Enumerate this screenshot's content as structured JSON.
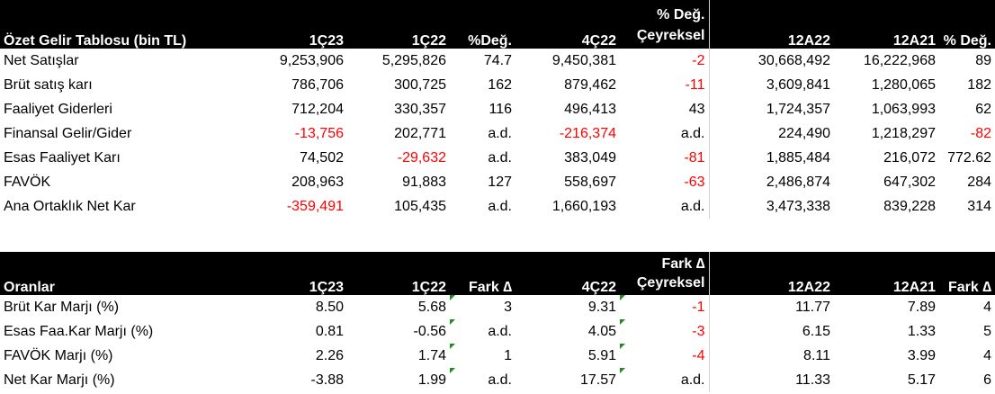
{
  "income": {
    "headers": {
      "title": "Özet Gelir Tablosu (bin TL)",
      "c1": "1Ç23",
      "c2": "1Ç22",
      "c3": "%Değ.",
      "c4": "4Ç22",
      "c5_top": "% Değ.",
      "c5": "Çeyreksel",
      "c6": "12A22",
      "c7": "12A21",
      "c8": "% Değ."
    },
    "rows": [
      {
        "label": "Net Satışlar",
        "v": [
          "9,253,906",
          "5,295,826",
          "74.7",
          "9,450,381",
          "-2",
          "30,668,492",
          "16,222,968",
          "89"
        ]
      },
      {
        "label": "Brüt satış karı",
        "v": [
          "786,706",
          "300,725",
          "162",
          "879,462",
          "-11",
          "3,609,841",
          "1,280,065",
          "182"
        ]
      },
      {
        "label": "Faaliyet Giderleri",
        "v": [
          "712,204",
          "330,357",
          "116",
          "496,413",
          "43",
          "1,724,357",
          "1,063,993",
          "62"
        ]
      },
      {
        "label": "Finansal Gelir/Gider",
        "v": [
          "-13,756",
          "202,771",
          "a.d.",
          "-216,374",
          "a.d.",
          "224,490",
          "1,218,297",
          "-82"
        ]
      },
      {
        "label": "Esas Faaliyet Karı",
        "v": [
          "74,502",
          "-29,632",
          "a.d.",
          "383,049",
          "-81",
          "1,885,484",
          "216,072",
          "772.62"
        ]
      },
      {
        "label": "FAVÖK",
        "v": [
          "208,963",
          "91,883",
          "127",
          "558,697",
          "-63",
          "2,486,874",
          "647,302",
          "284"
        ]
      },
      {
        "label": "Ana Ortaklık Net Kar",
        "v": [
          "-359,491",
          "105,435",
          "a.d.",
          "1,660,193",
          "a.d.",
          "3,473,338",
          "839,228",
          "314"
        ]
      }
    ]
  },
  "ratios": {
    "headers": {
      "title": "Oranlar",
      "c1": "1Ç23",
      "c2": "1Ç22",
      "c3": "Fark ∆",
      "c4": "4Ç22",
      "c5_top": "Fark ∆",
      "c5": "Çeyreksel",
      "c6": "12A22",
      "c7": "12A21",
      "c8": "Fark ∆"
    },
    "rows": [
      {
        "label": "Brüt Kar Marjı (%)",
        "v": [
          "8.50",
          "5.68",
          "3",
          "9.31",
          "-1",
          "11.77",
          "7.89",
          "4"
        ]
      },
      {
        "label": "Esas Faa.Kar Marjı (%)",
        "v": [
          "0.81",
          "-0.56",
          "a.d.",
          "4.05",
          "-3",
          "6.15",
          "1.33",
          "5"
        ]
      },
      {
        "label": "FAVÖK Marjı (%)",
        "v": [
          "2.26",
          "1.74",
          "1",
          "5.91",
          "-4",
          "8.11",
          "3.99",
          "4"
        ]
      },
      {
        "label": "Net Kar Marjı (%)",
        "v": [
          "-3.88",
          "1.99",
          "a.d.",
          "17.57",
          "a.d.",
          "11.33",
          "5.17",
          "6"
        ]
      }
    ]
  },
  "colors": {
    "header_bg": "#000000",
    "header_text": "#ffffff",
    "negative": "#ff0000",
    "marker": "#1e8c1e"
  }
}
